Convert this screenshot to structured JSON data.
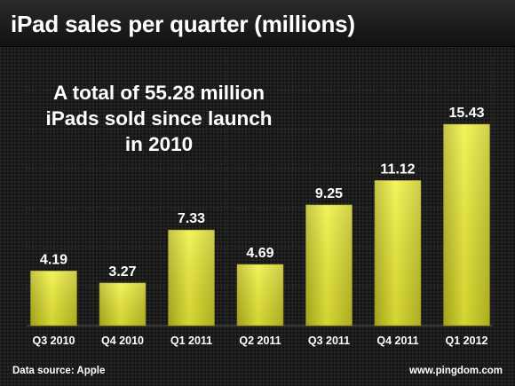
{
  "chart_data": {
    "type": "bar",
    "title": "iPad sales per quarter (millions)",
    "categories": [
      "Q3 2010",
      "Q4 2010",
      "Q1 2011",
      "Q2 2011",
      "Q3 2011",
      "Q4 2011",
      "Q1 2012"
    ],
    "values": [
      4.19,
      3.27,
      7.33,
      4.69,
      9.25,
      11.12,
      15.43
    ],
    "value_labels": [
      "4.19",
      "3.27",
      "7.33",
      "4.69",
      "9.25",
      "11.12",
      "15.43"
    ],
    "xlabel": "",
    "ylabel": "",
    "ylim": [
      0,
      18
    ],
    "grid": true,
    "bar_color": "#e8e832",
    "annotation": [
      "A total of 55.28 million",
      "iPads sold since launch",
      "in 2010"
    ]
  },
  "footer": {
    "source": "Data source: Apple",
    "site": "www.pingdom.com"
  }
}
